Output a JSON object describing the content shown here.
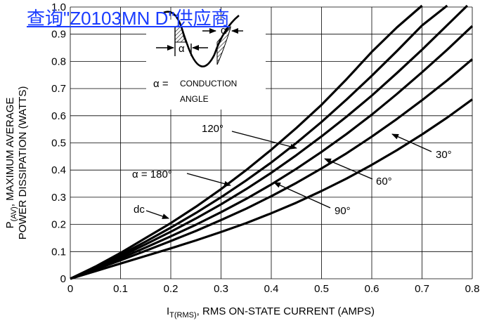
{
  "link_text": "查询\"Z0103MN D\"供应商",
  "chart_data": {
    "type": "line",
    "title": "",
    "xlabel_main": "I",
    "xlabel_sub": "T(RMS)",
    "xlabel_rest": ", RMS ON-STATE CURRENT (AMPS)",
    "ylabel_line1_main": "P",
    "ylabel_line1_sub": "(AV)",
    "ylabel_line1_rest": ", MAXIMUM AVERAGE",
    "ylabel_line2": "POWER DISSIPATION (WATTS)",
    "xlim": [
      0,
      0.8
    ],
    "ylim": [
      0,
      1.0
    ],
    "x_ticks": [
      "0",
      "0.1",
      "0.2",
      "0.3",
      "0.4",
      "0.5",
      "0.6",
      "0.7",
      "0.8"
    ],
    "y_ticks": [
      "0",
      "0.1",
      "0.2",
      "0.3",
      "0.4",
      "0.5",
      "0.6",
      "0.7",
      "0.8",
      "0.9",
      "1.0"
    ],
    "grid": true,
    "series": [
      {
        "name": "dc",
        "x": [
          0,
          0.05,
          0.1,
          0.15,
          0.2,
          0.25,
          0.3,
          0.35,
          0.4,
          0.45,
          0.5,
          0.55,
          0.6,
          0.65,
          0.7
        ],
        "y": [
          0,
          0.045,
          0.095,
          0.15,
          0.205,
          0.265,
          0.33,
          0.4,
          0.475,
          0.555,
          0.64,
          0.735,
          0.835,
          0.925,
          1.01
        ]
      },
      {
        "name": "α = 180°",
        "x": [
          0,
          0.05,
          0.1,
          0.15,
          0.2,
          0.25,
          0.3,
          0.35,
          0.4,
          0.45,
          0.5,
          0.55,
          0.6,
          0.65,
          0.7,
          0.75
        ],
        "y": [
          0,
          0.042,
          0.088,
          0.137,
          0.188,
          0.242,
          0.3,
          0.362,
          0.428,
          0.5,
          0.577,
          0.66,
          0.747,
          0.838,
          0.932,
          1.01
        ]
      },
      {
        "name": "120°",
        "x": [
          0,
          0.05,
          0.1,
          0.15,
          0.2,
          0.25,
          0.3,
          0.35,
          0.4,
          0.45,
          0.5,
          0.55,
          0.6,
          0.65,
          0.7,
          0.75,
          0.79
        ],
        "y": [
          0,
          0.04,
          0.082,
          0.127,
          0.173,
          0.222,
          0.274,
          0.33,
          0.39,
          0.455,
          0.524,
          0.597,
          0.674,
          0.757,
          0.843,
          0.933,
          1.01
        ]
      },
      {
        "name": "90°",
        "x": [
          0,
          0.05,
          0.1,
          0.15,
          0.2,
          0.25,
          0.3,
          0.35,
          0.4,
          0.45,
          0.5,
          0.55,
          0.6,
          0.65,
          0.7,
          0.75,
          0.8
        ],
        "y": [
          0,
          0.037,
          0.075,
          0.115,
          0.156,
          0.199,
          0.245,
          0.294,
          0.347,
          0.405,
          0.467,
          0.533,
          0.604,
          0.68,
          0.76,
          0.843,
          0.93
        ]
      },
      {
        "name": "60°",
        "x": [
          0,
          0.05,
          0.1,
          0.15,
          0.2,
          0.25,
          0.3,
          0.35,
          0.4,
          0.45,
          0.5,
          0.55,
          0.6,
          0.65,
          0.7,
          0.75,
          0.8
        ],
        "y": [
          0,
          0.034,
          0.068,
          0.103,
          0.139,
          0.176,
          0.216,
          0.258,
          0.304,
          0.353,
          0.406,
          0.462,
          0.523,
          0.588,
          0.657,
          0.73,
          0.808
        ]
      },
      {
        "name": "30°",
        "x": [
          0,
          0.05,
          0.1,
          0.15,
          0.2,
          0.25,
          0.3,
          0.35,
          0.4,
          0.45,
          0.5,
          0.55,
          0.6,
          0.65,
          0.7,
          0.75,
          0.8
        ],
        "y": [
          0,
          0.028,
          0.056,
          0.084,
          0.112,
          0.141,
          0.172,
          0.205,
          0.241,
          0.28,
          0.323,
          0.369,
          0.419,
          0.473,
          0.531,
          0.593,
          0.66
        ]
      }
    ],
    "annotations": {
      "dc": "dc",
      "a180": "α = 180°",
      "a120": "120°",
      "a90": "90°",
      "a60": "60°",
      "a30": "30°",
      "inset_alpha1": "α",
      "inset_alpha2": "α",
      "inset_eq": "α =",
      "inset_cond1": "CONDUCTION",
      "inset_cond2": "ANGLE"
    }
  }
}
